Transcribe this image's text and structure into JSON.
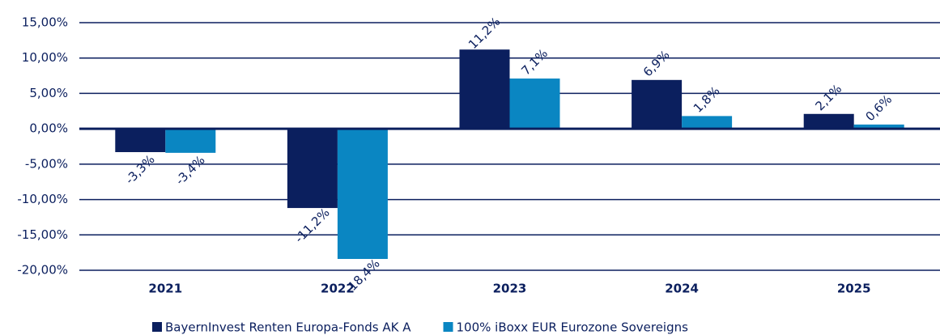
{
  "chart_data": {
    "type": "bar",
    "categories": [
      "2021",
      "2022",
      "2023",
      "2024",
      "2025"
    ],
    "series": [
      {
        "name": "BayernInvest Renten Europa-Fonds AK A",
        "color": "#0b1f5e",
        "values": [
          -3.3,
          -11.2,
          11.2,
          6.9,
          2.1
        ],
        "value_labels": [
          "-3,3%",
          "-11,2%",
          "11,2%",
          "6,9%",
          "2,1%"
        ]
      },
      {
        "name": "100% iBoxx EUR Eurozone Sovereigns",
        "color": "#0a86c2",
        "values": [
          -3.4,
          -18.4,
          7.1,
          1.8,
          0.6
        ],
        "value_labels": [
          "-3,4%",
          "-18,4%",
          "7,1%",
          "1,8%",
          "0,6%"
        ]
      }
    ],
    "ylim": [
      -20,
      15
    ],
    "yticks": [
      {
        "value": -20,
        "label": "-20,00%"
      },
      {
        "value": -15,
        "label": "-15,00%"
      },
      {
        "value": -10,
        "label": "-10,00%"
      },
      {
        "value": -5,
        "label": "-5,00%"
      },
      {
        "value": 0,
        "label": "0,00%"
      },
      {
        "value": 5,
        "label": "5,00%"
      },
      {
        "value": 10,
        "label": "10,00%"
      },
      {
        "value": 15,
        "label": "15,00%"
      }
    ],
    "grid": true,
    "legend": "bottom"
  }
}
